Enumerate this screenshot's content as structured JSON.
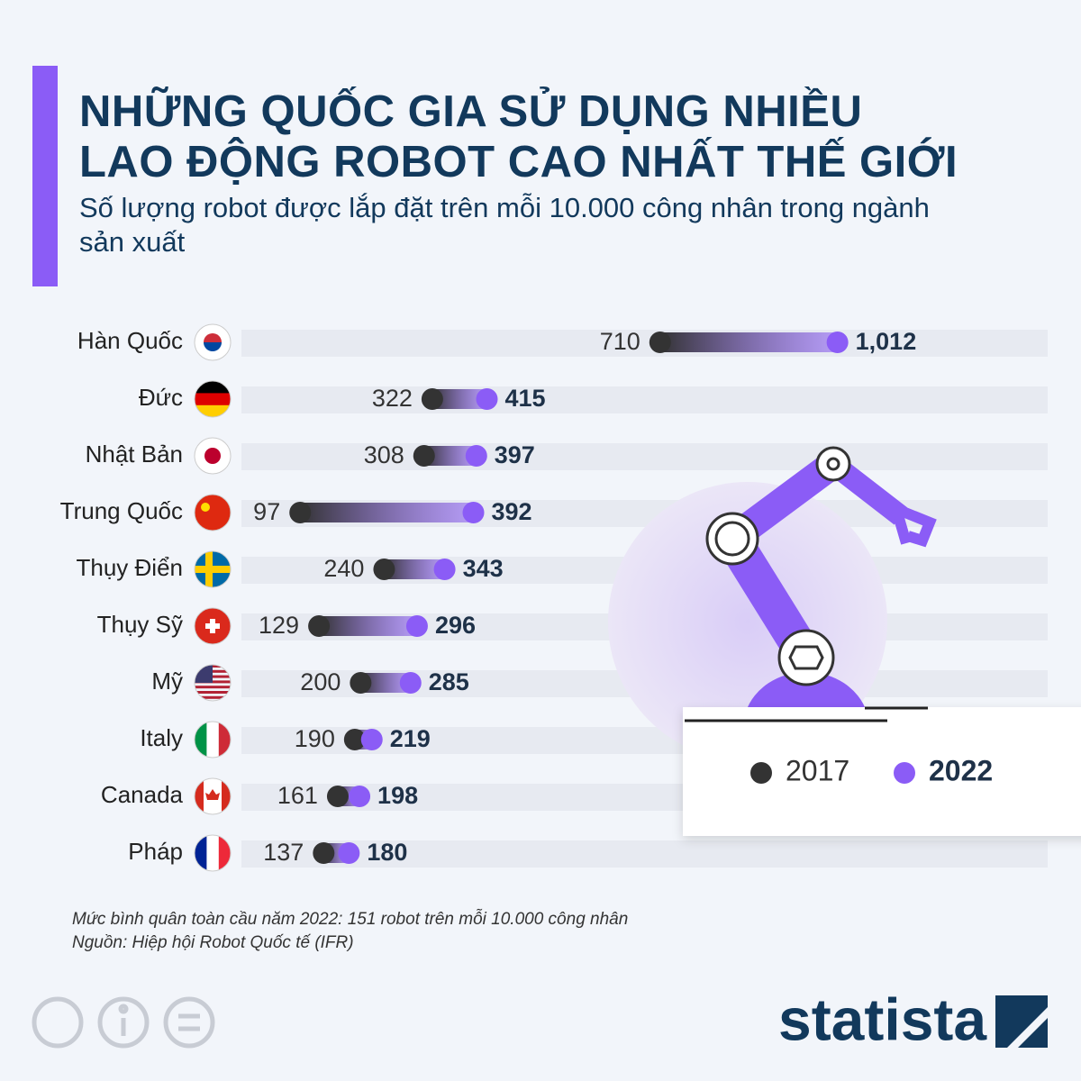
{
  "chart_data": {
    "type": "dumbbell",
    "title": [
      "NHỮNG QUỐC GIA SỬ DỤNG NHIỀU",
      "LAO ĐỘNG ROBOT CAO NHẤT THẾ GIỚI"
    ],
    "subtitle": "Số lượng robot được lắp đặt trên mỗi 10.000 công nhân trong ngành sản xuất",
    "categories": [
      "Hàn Quốc",
      "Đức",
      "Nhật Bản",
      "Trung Quốc",
      "Thụy Điển",
      "Thụy Sỹ",
      "Mỹ",
      "Italy",
      "Canada",
      "Pháp"
    ],
    "series": [
      {
        "name": "2017",
        "color": "#333333",
        "values": [
          710,
          322,
          308,
          97,
          240,
          129,
          200,
          190,
          161,
          137
        ]
      },
      {
        "name": "2022",
        "color": "#8b5cf6",
        "values": [
          1012,
          415,
          397,
          392,
          343,
          296,
          285,
          219,
          198,
          180
        ],
        "value_labels": [
          "1,012",
          "415",
          "397",
          "392",
          "343",
          "296",
          "285",
          "219",
          "198",
          "180"
        ]
      }
    ],
    "xlim": [
      0,
      1370
    ],
    "footnote": "Mức bình quân toàn cầu năm 2022: 151 robot trên mỗi 10.000 công nhân",
    "source": "Nguồn: Hiệp hội Robot Quốc tế (IFR)",
    "brand": "statista"
  }
}
